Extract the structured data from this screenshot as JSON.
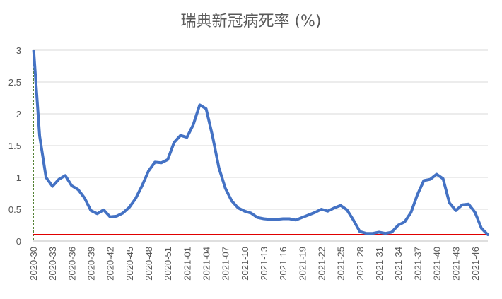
{
  "chart_data": {
    "type": "line",
    "title": "瑞典新冠病死率 (%)",
    "xlabel": "",
    "ylabel": "",
    "ylim": [
      0,
      3
    ],
    "y_ticks": [
      "0",
      "0.5",
      "1",
      "1.5",
      "2",
      "2.5",
      "3"
    ],
    "y_tick_values": [
      0,
      0.5,
      1,
      1.5,
      2,
      2.5,
      3
    ],
    "x_tick_labels": [
      "2020-30",
      "2020-33",
      "2020-36",
      "2020-39",
      "2020-42",
      "2020-45",
      "2020-48",
      "2020-51",
      "2021-01",
      "2021-04",
      "2021-07",
      "2021-10",
      "2021-13",
      "2021-16",
      "2021-19",
      "2021-22",
      "2021-25",
      "2021-28",
      "2021-31",
      "2021-34",
      "2021-37",
      "2021-40",
      "2021-43",
      "2021-46"
    ],
    "grid": true,
    "reference_line": {
      "value": 0.1,
      "color": "#e00000"
    },
    "colors": {
      "series": "#4472c4",
      "reference": "#e00000",
      "y_axis": "#548235",
      "grid": "#d9d9d9"
    },
    "series": [
      {
        "x": [
          "2020-30",
          "2020-31",
          "2020-32",
          "2020-33",
          "2020-34",
          "2020-35",
          "2020-36",
          "2020-37",
          "2020-38",
          "2020-39",
          "2020-40",
          "2020-41",
          "2020-42",
          "2020-43",
          "2020-44",
          "2020-45",
          "2020-46",
          "2020-47",
          "2020-48",
          "2020-49",
          "2020-50",
          "2020-51",
          "2020-52",
          "2020-53",
          "2021-01",
          "2021-02",
          "2021-03",
          "2021-04",
          "2021-05",
          "2021-06",
          "2021-07",
          "2021-08",
          "2021-09",
          "2021-10",
          "2021-11",
          "2021-12",
          "2021-13",
          "2021-14",
          "2021-15",
          "2021-16",
          "2021-17",
          "2021-18",
          "2021-19",
          "2021-20",
          "2021-21",
          "2021-22",
          "2021-23",
          "2021-24",
          "2021-25",
          "2021-26",
          "2021-27",
          "2021-28",
          "2021-29",
          "2021-30",
          "2021-31",
          "2021-32",
          "2021-33",
          "2021-34",
          "2021-35",
          "2021-36",
          "2021-37",
          "2021-38",
          "2021-39",
          "2021-40",
          "2021-41",
          "2021-42",
          "2021-43",
          "2021-44",
          "2021-45",
          "2021-46",
          "2021-47",
          "2021-48"
        ],
        "values": [
          3.1,
          1.65,
          1.0,
          0.86,
          0.97,
          1.03,
          0.87,
          0.81,
          0.68,
          0.48,
          0.43,
          0.49,
          0.38,
          0.39,
          0.44,
          0.53,
          0.67,
          0.87,
          1.1,
          1.24,
          1.23,
          1.28,
          1.55,
          1.66,
          1.63,
          1.83,
          2.14,
          2.08,
          1.65,
          1.15,
          0.83,
          0.63,
          0.52,
          0.47,
          0.44,
          0.37,
          0.35,
          0.34,
          0.34,
          0.35,
          0.35,
          0.33,
          0.37,
          0.41,
          0.45,
          0.5,
          0.47,
          0.52,
          0.56,
          0.49,
          0.33,
          0.15,
          0.12,
          0.12,
          0.14,
          0.12,
          0.14,
          0.25,
          0.3,
          0.45,
          0.73,
          0.95,
          0.97,
          1.05,
          0.98,
          0.6,
          0.48,
          0.57,
          0.58,
          0.45,
          0.2,
          0.1
        ]
      }
    ]
  }
}
